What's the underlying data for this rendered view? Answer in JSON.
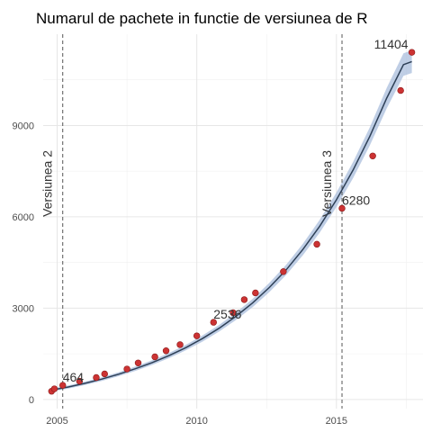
{
  "chart_data": {
    "type": "scatter",
    "title": "Numarul de pachete in functie de versiunea de R",
    "xlabel": "",
    "ylabel": "",
    "xlim": [
      2004.5,
      2018.1
    ],
    "ylim": [
      -300,
      12000
    ],
    "x_ticks": [
      2005,
      2010,
      2015
    ],
    "y_ticks": [
      0,
      3000,
      6000,
      9000
    ],
    "grid": true,
    "points": {
      "x": [
        2004.8,
        2004.9,
        2005.2,
        2005.8,
        2006.4,
        2006.7,
        2007.5,
        2007.9,
        2008.5,
        2008.9,
        2009.4,
        2010.0,
        2010.6,
        2011.3,
        2011.7,
        2012.1,
        2013.1,
        2014.3,
        2015.2,
        2016.3,
        2017.3,
        2017.7
      ],
      "y": [
        270,
        350,
        464,
        600,
        720,
        840,
        1000,
        1200,
        1400,
        1600,
        1800,
        2090,
        2536,
        2850,
        3280,
        3500,
        4200,
        5100,
        6280,
        8000,
        10150,
        11404
      ],
      "color": "#cc3333"
    },
    "trend": {
      "color": "#2e4057",
      "band_color": "#a9bedc",
      "x": [
        2004.8,
        2005.4,
        2006.0,
        2006.6,
        2007.2,
        2007.8,
        2008.4,
        2009.0,
        2009.6,
        2010.2,
        2010.8,
        2011.4,
        2012.0,
        2012.6,
        2013.2,
        2013.8,
        2014.4,
        2015.0,
        2015.6,
        2016.2,
        2016.8,
        2017.4,
        2017.7
      ],
      "y": [
        310,
        410,
        530,
        670,
        830,
        1010,
        1210,
        1440,
        1700,
        2000,
        2340,
        2730,
        3170,
        3680,
        4260,
        4930,
        5690,
        6560,
        7540,
        8650,
        9900,
        11000,
        11100
      ]
    },
    "vlines": [
      {
        "x": 2005.2,
        "label": "Versiunea 2"
      },
      {
        "x": 2015.2,
        "label": "Versiunea 3"
      }
    ],
    "annotations": [
      {
        "x": 2005.2,
        "y": 464,
        "label": "464"
      },
      {
        "x": 2010.6,
        "y": 2536,
        "label": "2536"
      },
      {
        "x": 2015.2,
        "y": 6280,
        "label": "6280"
      },
      {
        "x": 2017.7,
        "y": 11404,
        "label": "11404"
      }
    ]
  }
}
